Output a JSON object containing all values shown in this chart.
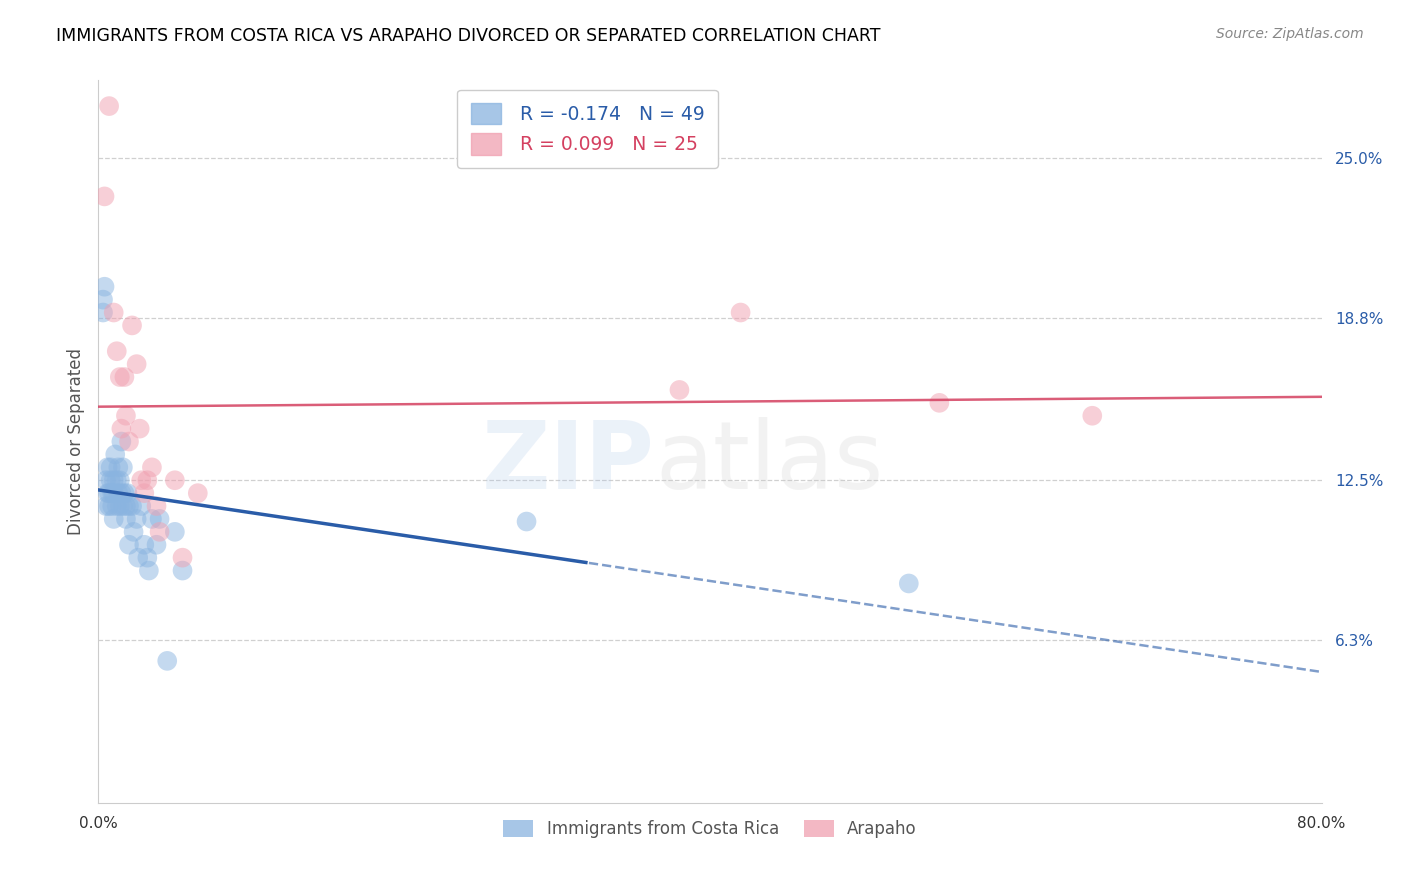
{
  "title": "IMMIGRANTS FROM COSTA RICA VS ARAPAHO DIVORCED OR SEPARATED CORRELATION CHART",
  "source": "Source: ZipAtlas.com",
  "xlabel_blue": "Immigrants from Costa Rica",
  "xlabel_pink": "Arapaho",
  "ylabel": "Divorced or Separated",
  "legend_blue_r": "R = -0.174",
  "legend_blue_n": "N = 49",
  "legend_pink_r": "R = 0.099",
  "legend_pink_n": "N = 25",
  "xmin": 0.0,
  "xmax": 0.8,
  "ymin": 0.0,
  "ymax": 0.28,
  "ytick_vals": [
    0.063,
    0.125,
    0.188,
    0.25
  ],
  "ytick_labels": [
    "6.3%",
    "12.5%",
    "18.8%",
    "25.0%"
  ],
  "blue_color": "#8ab4e0",
  "pink_color": "#f0a0b0",
  "blue_line_color": "#2a5ca8",
  "pink_line_color": "#d44060",
  "blue_scatter_x": [
    0.003,
    0.003,
    0.004,
    0.005,
    0.005,
    0.006,
    0.006,
    0.007,
    0.007,
    0.008,
    0.008,
    0.009,
    0.009,
    0.01,
    0.01,
    0.01,
    0.011,
    0.012,
    0.012,
    0.013,
    0.013,
    0.014,
    0.014,
    0.015,
    0.015,
    0.016,
    0.016,
    0.017,
    0.018,
    0.018,
    0.019,
    0.02,
    0.02,
    0.022,
    0.023,
    0.025,
    0.026,
    0.028,
    0.03,
    0.032,
    0.033,
    0.035,
    0.038,
    0.04,
    0.045,
    0.05,
    0.055,
    0.28,
    0.53
  ],
  "blue_scatter_y": [
    0.195,
    0.19,
    0.2,
    0.125,
    0.115,
    0.13,
    0.12,
    0.12,
    0.115,
    0.13,
    0.125,
    0.12,
    0.115,
    0.125,
    0.12,
    0.11,
    0.135,
    0.125,
    0.115,
    0.13,
    0.12,
    0.125,
    0.115,
    0.14,
    0.12,
    0.13,
    0.115,
    0.12,
    0.115,
    0.11,
    0.12,
    0.115,
    0.1,
    0.115,
    0.105,
    0.11,
    0.095,
    0.115,
    0.1,
    0.095,
    0.09,
    0.11,
    0.1,
    0.11,
    0.055,
    0.105,
    0.09,
    0.109,
    0.085
  ],
  "pink_scatter_x": [
    0.004,
    0.007,
    0.01,
    0.012,
    0.014,
    0.015,
    0.017,
    0.018,
    0.02,
    0.022,
    0.025,
    0.027,
    0.028,
    0.03,
    0.032,
    0.035,
    0.038,
    0.04,
    0.05,
    0.055,
    0.065,
    0.38,
    0.42,
    0.55,
    0.65
  ],
  "pink_scatter_y": [
    0.235,
    0.27,
    0.19,
    0.175,
    0.165,
    0.145,
    0.165,
    0.15,
    0.14,
    0.185,
    0.17,
    0.145,
    0.125,
    0.12,
    0.125,
    0.13,
    0.115,
    0.105,
    0.125,
    0.095,
    0.12,
    0.16,
    0.19,
    0.155,
    0.15
  ]
}
